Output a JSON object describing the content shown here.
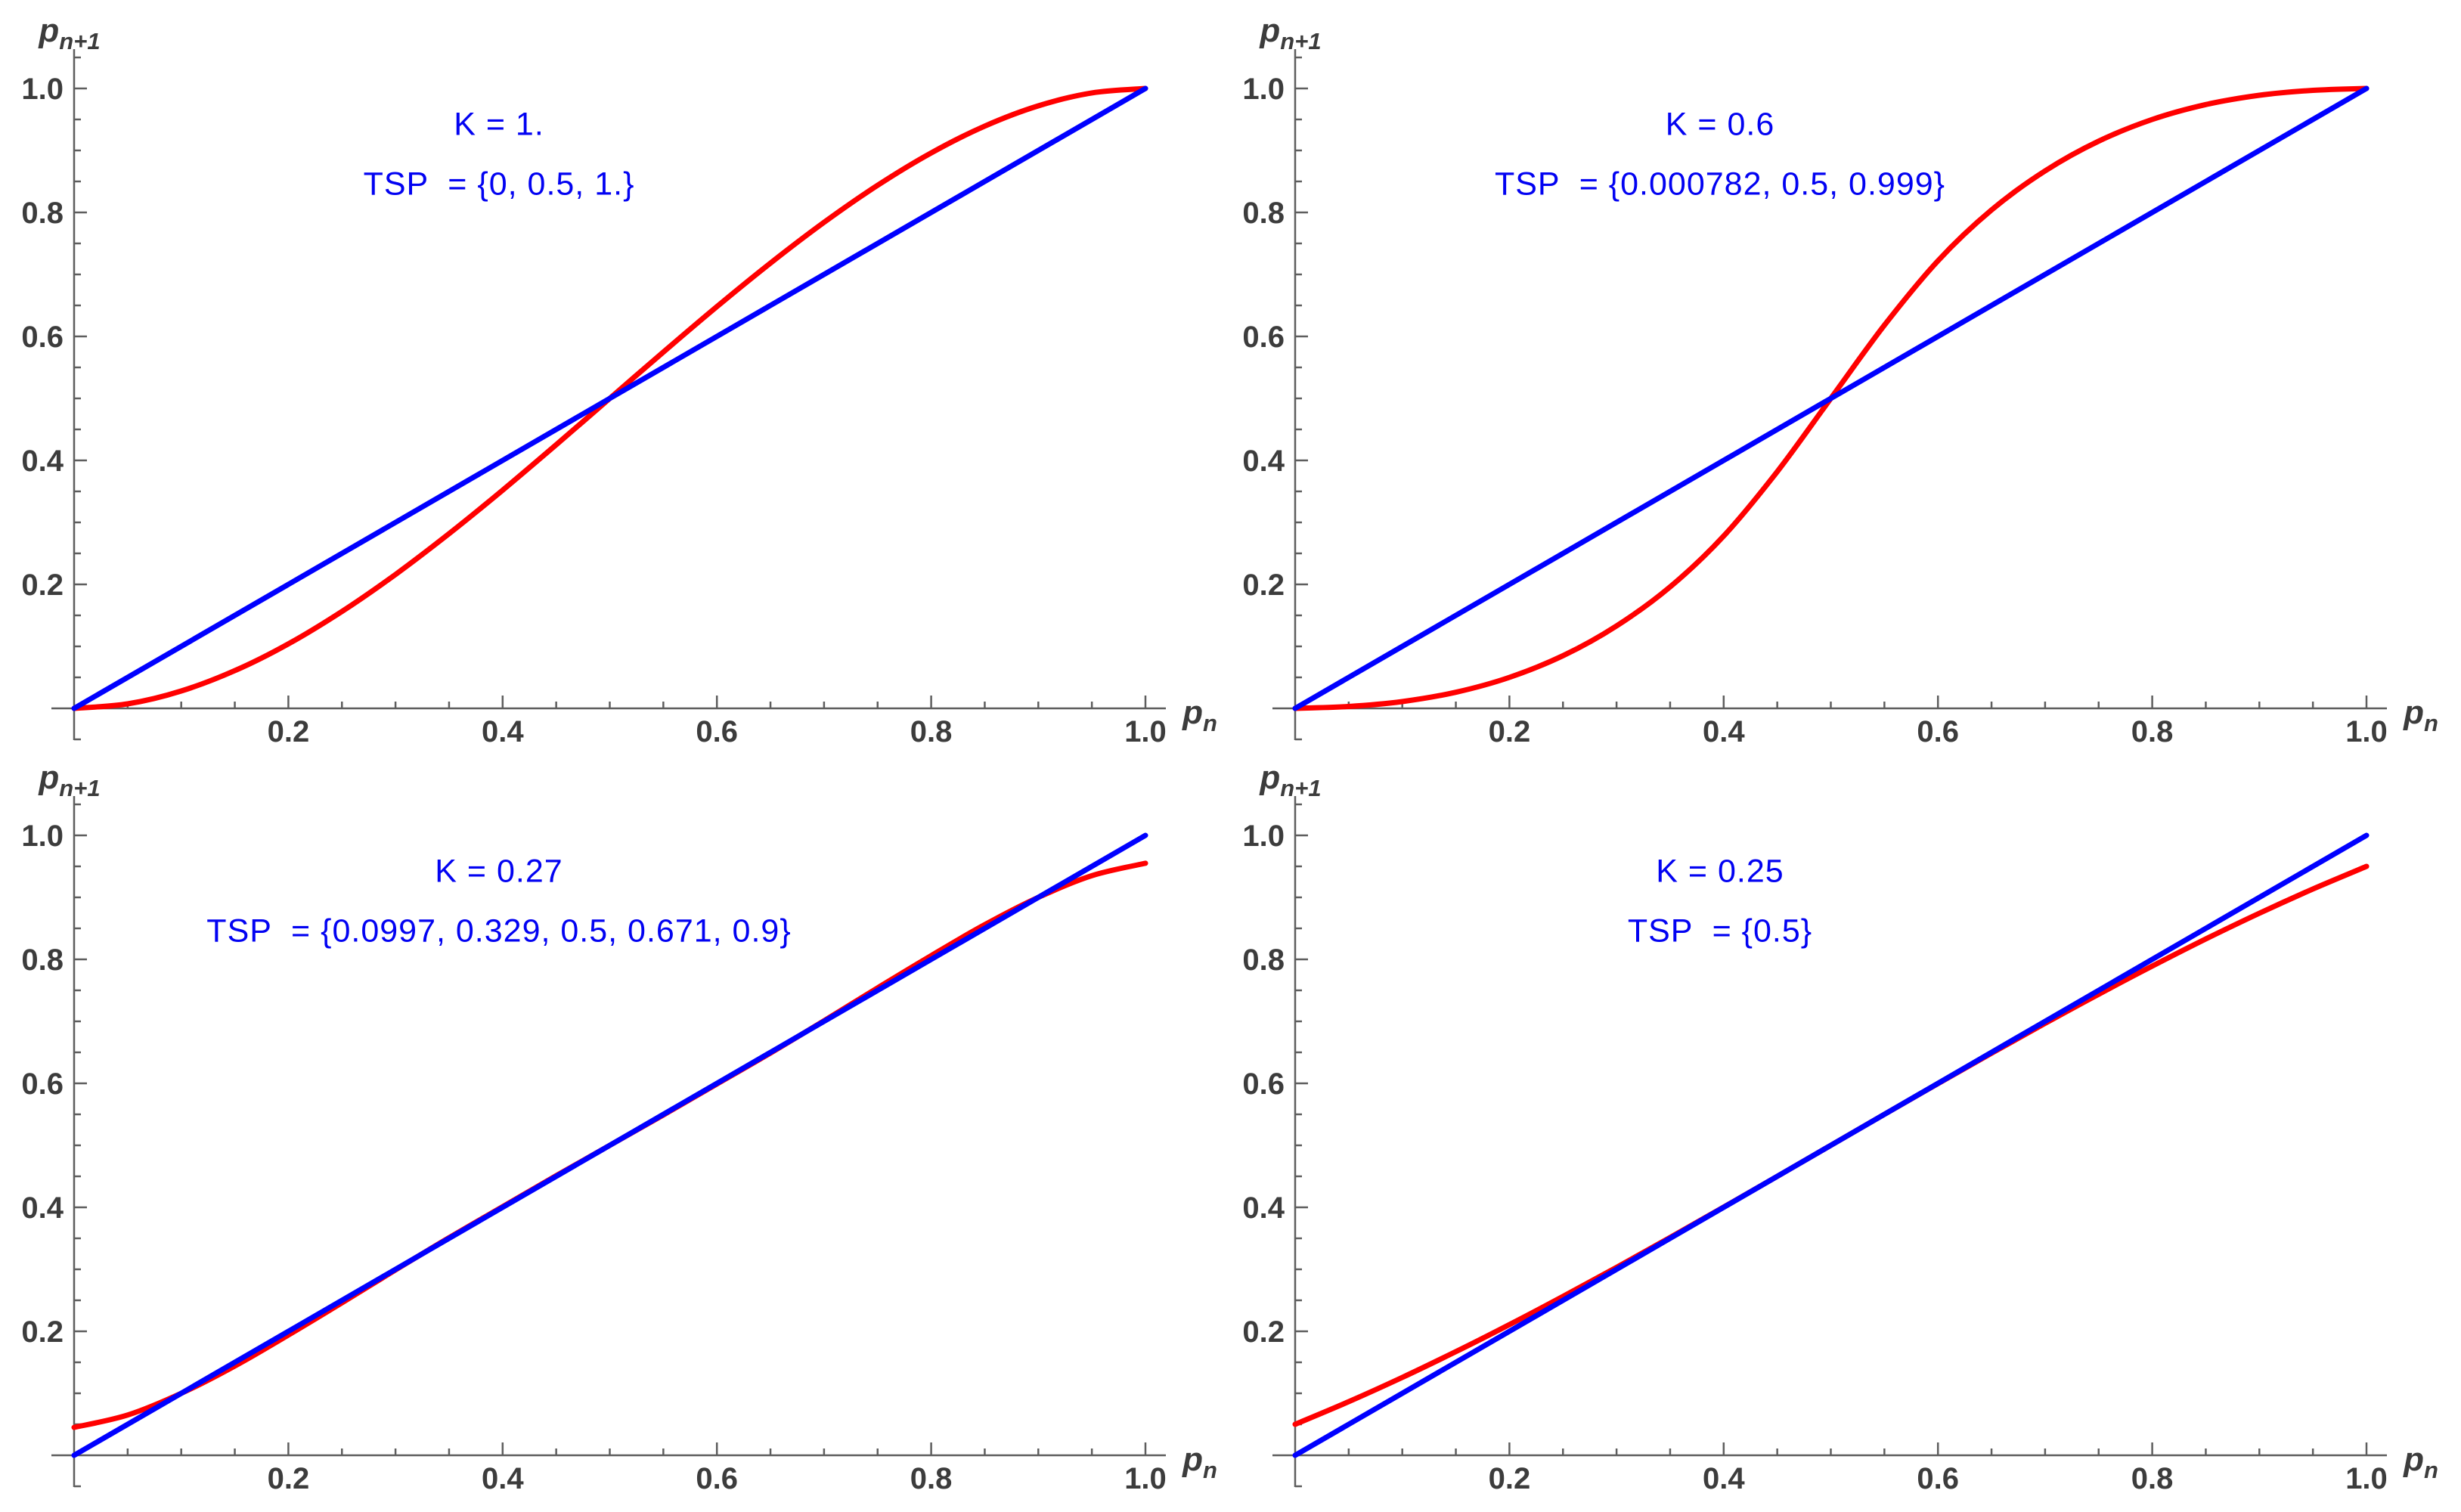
{
  "figure": {
    "background": "#ffffff",
    "grid": "off",
    "legend": "none",
    "layout": "2x2 subplots"
  },
  "colors": {
    "map_curve": "#ff0000",
    "identity_line": "#0000ff",
    "annotation_text": "#0202f2",
    "axis_line": "#5e5e5e",
    "tick_label": "#3c3c3c"
  },
  "axis_labels": {
    "x": {
      "base": "p",
      "sub": "n"
    },
    "y": {
      "base": "p",
      "sub": "n+1"
    }
  },
  "axis_config": {
    "xlim": [
      0,
      1
    ],
    "ylim": [
      0,
      1
    ],
    "tick_values": [
      0.2,
      0.4,
      0.6,
      0.8,
      1.0
    ],
    "tick_labels": [
      "0.2",
      "0.4",
      "0.6",
      "0.8",
      "1.0"
    ],
    "minor_tick_step": 0.05
  },
  "chart_data": [
    {
      "name": "top-left",
      "type": "line",
      "K": 1.0,
      "TSP": [
        0,
        0.5,
        1.0
      ],
      "k_label": "K = 1.",
      "tsp_label": "TSP  = {0, 0.5, 1.}",
      "xlabel": "p_n",
      "ylabel": "p_n+1",
      "xlim": [
        0,
        1
      ],
      "ylim": [
        0,
        1
      ],
      "series": [
        {
          "name": "map-curve",
          "color": "#ff0000",
          "x": [
            0,
            0.05,
            0.1,
            0.15,
            0.2,
            0.25,
            0.3,
            0.35,
            0.4,
            0.45,
            0.5,
            0.55,
            0.6,
            0.65,
            0.7,
            0.75,
            0.8,
            0.85,
            0.9,
            0.95,
            1
          ],
          "y": [
            0,
            0.0073,
            0.028,
            0.0608,
            0.104,
            0.1563,
            0.216,
            0.2818,
            0.352,
            0.4253,
            0.5,
            0.5748,
            0.648,
            0.7183,
            0.784,
            0.8438,
            0.896,
            0.9393,
            0.972,
            0.9928,
            1
          ]
        },
        {
          "name": "identity-line",
          "color": "#0000ff",
          "x": [
            0,
            1
          ],
          "y": [
            0,
            1
          ]
        }
      ]
    },
    {
      "name": "top-right",
      "type": "line",
      "K": 0.6,
      "TSP": [
        0.000782,
        0.5,
        0.999
      ],
      "k_label": "K = 0.6",
      "tsp_label": "TSP  = {0.000782, 0.5, 0.999}",
      "xlabel": "p_n",
      "ylabel": "p_n+1",
      "xlim": [
        0,
        1
      ],
      "ylim": [
        0,
        1
      ],
      "series": [
        {
          "name": "map-curve",
          "color": "#ff0000",
          "x": [
            0,
            0.05,
            0.1,
            0.15,
            0.2,
            0.25,
            0.3,
            0.35,
            0.4,
            0.45,
            0.5,
            0.55,
            0.6,
            0.65,
            0.7,
            0.75,
            0.8,
            0.85,
            0.9,
            0.95,
            1
          ],
          "y": [
            0,
            0.003,
            0.011,
            0.026,
            0.05,
            0.085,
            0.133,
            0.196,
            0.278,
            0.382,
            0.5,
            0.618,
            0.722,
            0.804,
            0.867,
            0.915,
            0.95,
            0.974,
            0.989,
            0.997,
            1
          ]
        },
        {
          "name": "identity-line",
          "color": "#0000ff",
          "x": [
            0,
            1
          ],
          "y": [
            0,
            1
          ]
        }
      ]
    },
    {
      "name": "bottom-left",
      "type": "line",
      "K": 0.27,
      "TSP": [
        0.0997,
        0.329,
        0.5,
        0.671,
        0.9
      ],
      "k_label": "K = 0.27",
      "tsp_label": "TSP  = {0.0997, 0.329, 0.5, 0.671, 0.9}",
      "xlabel": "p_n",
      "ylabel": "p_n+1",
      "xlim": [
        0,
        1
      ],
      "ylim": [
        0,
        1
      ],
      "series": [
        {
          "name": "map-curve",
          "color": "#ff0000",
          "x": [
            0,
            0.05,
            0.1,
            0.15,
            0.2,
            0.25,
            0.3,
            0.35,
            0.4,
            0.45,
            0.5,
            0.55,
            0.6,
            0.65,
            0.7,
            0.75,
            0.8,
            0.85,
            0.9,
            0.95,
            1
          ],
          "y": [
            0.045,
            0.065,
            0.1,
            0.144,
            0.194,
            0.246,
            0.299,
            0.351,
            0.401,
            0.451,
            0.5,
            0.549,
            0.599,
            0.649,
            0.701,
            0.754,
            0.806,
            0.856,
            0.9,
            0.935,
            0.955
          ]
        },
        {
          "name": "identity-line",
          "color": "#0000ff",
          "x": [
            0,
            1
          ],
          "y": [
            0,
            1
          ]
        }
      ]
    },
    {
      "name": "bottom-right",
      "type": "line",
      "K": 0.25,
      "TSP": [
        0.5
      ],
      "k_label": "K = 0.25",
      "tsp_label": "TSP  = {0.5}",
      "xlabel": "p_n",
      "ylabel": "p_n+1",
      "xlim": [
        0,
        1
      ],
      "ylim": [
        0,
        1
      ],
      "series": [
        {
          "name": "map-curve",
          "color": "#ff0000",
          "x": [
            0,
            0.05,
            0.1,
            0.15,
            0.2,
            0.25,
            0.3,
            0.35,
            0.4,
            0.45,
            0.5,
            0.55,
            0.6,
            0.65,
            0.7,
            0.75,
            0.8,
            0.85,
            0.9,
            0.95,
            1
          ],
          "y": [
            0.05,
            0.0865,
            0.1256,
            0.1672,
            0.2108,
            0.2563,
            0.3032,
            0.3514,
            0.4004,
            0.45,
            0.5,
            0.55,
            0.5996,
            0.6487,
            0.6968,
            0.7438,
            0.7892,
            0.8329,
            0.8744,
            0.9135,
            0.95
          ]
        },
        {
          "name": "identity-line",
          "color": "#0000ff",
          "x": [
            0,
            1
          ],
          "y": [
            0,
            1
          ]
        }
      ]
    }
  ]
}
